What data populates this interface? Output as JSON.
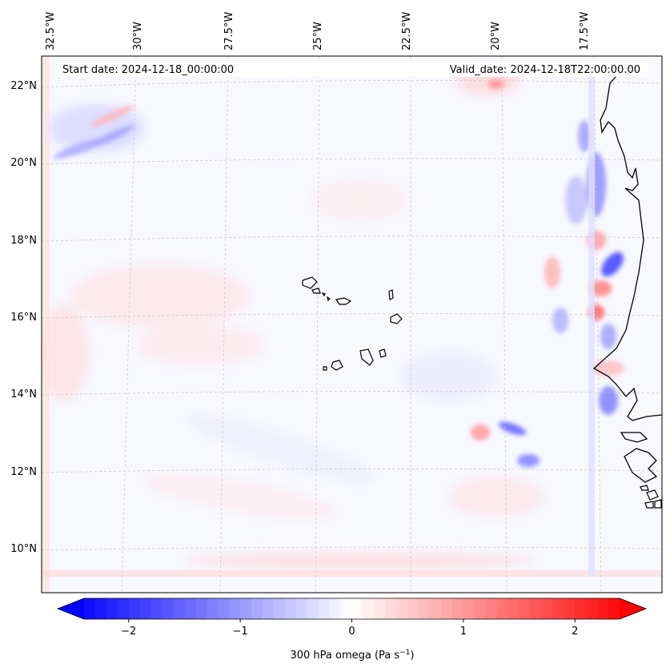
{
  "header": {
    "start_date": "Start date: 2024-12-18_00:00:00",
    "valid_date": "Valid_date: 2024-12-18T22:00:00.00"
  },
  "axes": {
    "top_lon_labels": [
      "32.5°W",
      "30°W",
      "27.5°W",
      "25°W",
      "22.5°W",
      "20°W",
      "17.5°W"
    ],
    "left_lat_labels": [
      "22°N",
      "20°N",
      "18°N",
      "16°N",
      "14°N",
      "12°N",
      "10°N"
    ]
  },
  "colorbar": {
    "ticks": [
      "−2",
      "−1",
      "0",
      "1",
      "2"
    ],
    "tick_values": [
      -2,
      -1,
      0,
      1,
      2
    ],
    "vmin": -2.5,
    "vmax": 2.5,
    "label": "300 hPa omega (Pa s",
    "label_sup": "−1",
    "label_tail": ")",
    "negative_color": "#0000ff",
    "zero_color": "#ffffff",
    "positive_color": "#ff0000"
  },
  "map": {
    "field": "300 hPa omega",
    "colormap": "bwr",
    "coastline_color": "#000000",
    "gridline_color": "#c8c8c8"
  }
}
